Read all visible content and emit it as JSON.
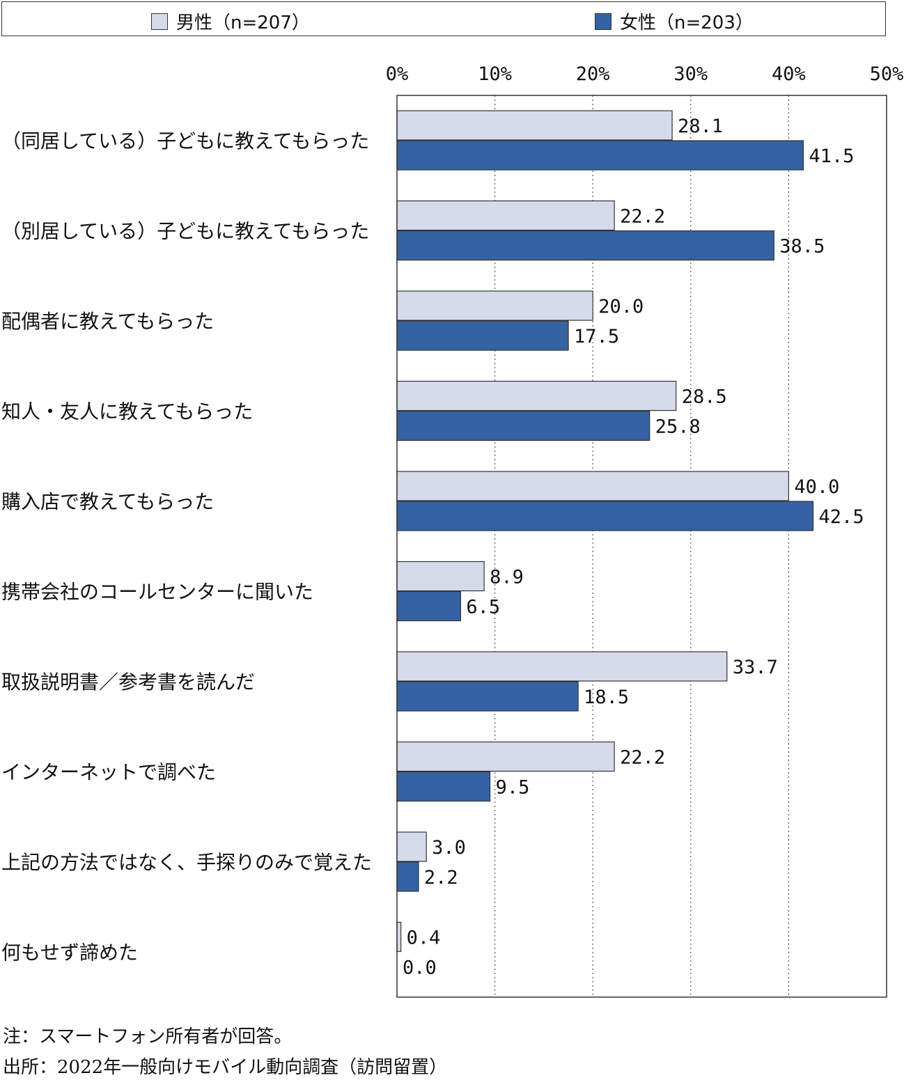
{
  "chart_data": {
    "type": "bar",
    "orientation": "horizontal",
    "categories": [
      "（同居している）子どもに教えてもらった",
      "（別居している）子どもに教えてもらった",
      "配偶者に教えてもらった",
      "知人・友人に教えてもらった",
      "購入店で教えてもらった",
      "携帯会社のコールセンターに聞いた",
      "取扱説明書／参考書を読んだ",
      "インターネットで調べた",
      "上記の方法ではなく、手探りのみで覚えた",
      "何もせず諦めた"
    ],
    "series": [
      {
        "name": "男性（n=207）",
        "color": "#d5dbea",
        "values": [
          28.1,
          22.2,
          20.0,
          28.5,
          40.0,
          8.9,
          33.7,
          22.2,
          3.0,
          0.4
        ],
        "labels": [
          "28.1",
          "22.2",
          "20.0",
          "28.5",
          "40.0",
          "8.9",
          "33.7",
          "22.2",
          "3.0",
          "0.4"
        ]
      },
      {
        "name": "女性（n=203）",
        "color": "#3462a3",
        "values": [
          41.5,
          38.5,
          17.5,
          25.8,
          42.5,
          6.5,
          18.5,
          9.5,
          2.2,
          0.0
        ],
        "labels": [
          "41.5",
          "38.5",
          "17.5",
          "25.8",
          "42.5",
          "6.5",
          "18.5",
          "9.5",
          "2.2",
          "0.0"
        ]
      }
    ],
    "xlim": [
      0,
      50
    ],
    "ticks": [
      "0%",
      "10%",
      "20%",
      "30%",
      "40%",
      "50%"
    ],
    "tick_values": [
      0,
      10,
      20,
      30,
      40,
      50
    ],
    "grid": true,
    "legend_position": "top"
  },
  "notes": {
    "note": "注：スマートフォン所有者が回答。",
    "source": "出所：2022年一般向けモバイル動向調査（訪問留置）"
  }
}
